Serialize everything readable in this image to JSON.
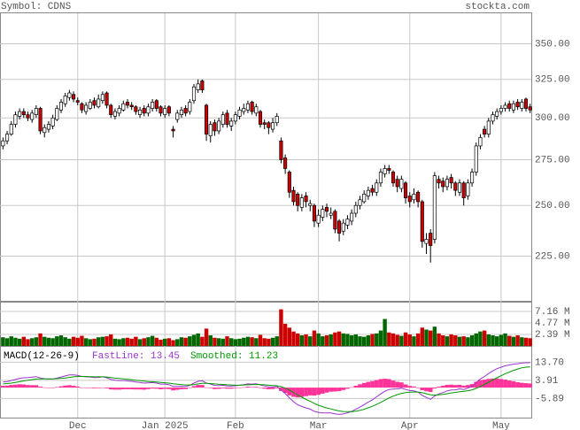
{
  "chart_data": {
    "type": "candlestick",
    "title": "Symbol: CDNS",
    "source": "stockta.com",
    "categories": [
      null,
      null,
      null,
      null,
      null,
      null,
      null,
      null,
      null,
      null,
      null,
      null,
      null,
      null,
      null,
      null,
      null,
      null,
      "Dec",
      null,
      null,
      null,
      null,
      null,
      null,
      null,
      null,
      null,
      null,
      null,
      null,
      null,
      null,
      null,
      null,
      null,
      null,
      null,
      null,
      "Jan 2025",
      null,
      null,
      null,
      null,
      null,
      null,
      null,
      null,
      null,
      null,
      null,
      null,
      null,
      null,
      null,
      null,
      "Feb",
      null,
      null,
      null,
      null,
      null,
      null,
      null,
      null,
      null,
      null,
      null,
      null,
      null,
      null,
      null,
      null,
      null,
      null,
      null,
      "Mar",
      null,
      null,
      null,
      null,
      null,
      null,
      null,
      null,
      null,
      null,
      null,
      null,
      null,
      null,
      null,
      null,
      null,
      null,
      null,
      null,
      null,
      "Apr",
      null,
      null,
      null,
      null,
      null,
      null,
      null,
      null,
      null,
      null,
      null,
      null,
      null,
      null,
      null,
      null,
      null,
      null,
      null,
      null,
      null,
      "May",
      null,
      null,
      null,
      null,
      null,
      null,
      null
    ],
    "open": [
      283,
      286,
      290,
      296,
      301,
      304,
      302,
      299,
      302,
      306,
      291,
      293,
      295,
      299,
      305,
      309,
      313,
      315,
      311,
      309,
      304,
      306,
      311,
      307,
      311,
      316,
      308,
      301,
      303,
      305,
      310,
      308,
      307,
      302,
      306,
      303,
      306,
      311,
      307,
      302,
      307,
      293,
      299,
      302,
      306,
      304,
      311,
      318,
      324,
      308,
      289,
      297,
      292,
      296,
      303,
      295,
      298,
      301,
      304,
      305,
      310,
      303,
      304,
      297,
      297,
      293,
      297,
      286,
      276,
      268,
      258,
      256,
      249,
      255,
      250,
      250,
      241,
      244,
      249,
      245,
      247,
      242,
      237,
      240,
      242,
      246,
      250,
      252,
      255,
      259,
      257,
      262,
      267,
      270,
      268,
      264,
      259,
      262,
      255,
      253,
      257,
      252,
      231,
      236,
      233,
      264,
      263,
      260,
      265,
      262,
      257,
      262,
      255,
      262,
      268,
      283,
      293,
      290,
      298,
      301,
      304,
      306,
      309,
      305,
      310,
      306,
      312,
      307
    ],
    "high": [
      288,
      292,
      298,
      304,
      306,
      306,
      304,
      305,
      308,
      307,
      296,
      298,
      302,
      308,
      312,
      316,
      318,
      317,
      313,
      310,
      310,
      312,
      313,
      315,
      317,
      317,
      309,
      306,
      308,
      311,
      312,
      310,
      308,
      307,
      308,
      309,
      312,
      312,
      308,
      308,
      308,
      295,
      305,
      307,
      308,
      312,
      322,
      325,
      325,
      309,
      298,
      299,
      300,
      304,
      305,
      300,
      304,
      307,
      309,
      311,
      311,
      309,
      305,
      299,
      298,
      300,
      303,
      288,
      278,
      269,
      260,
      257,
      256,
      257,
      253,
      251,
      248,
      250,
      251,
      249,
      248,
      243,
      243,
      245,
      248,
      252,
      255,
      258,
      260,
      261,
      264,
      270,
      272,
      272,
      269,
      266,
      266,
      263,
      257,
      259,
      258,
      253,
      236,
      238,
      268,
      266,
      265,
      266,
      267,
      263,
      264,
      263,
      264,
      270,
      285,
      290,
      295,
      300,
      304,
      306,
      308,
      310,
      311,
      311,
      312,
      312,
      313,
      309
    ],
    "low": [
      281,
      284,
      289,
      294,
      299,
      300,
      298,
      297,
      300,
      290,
      288,
      291,
      293,
      298,
      303,
      307,
      311,
      310,
      308,
      303,
      302,
      305,
      306,
      306,
      309,
      306,
      300,
      299,
      301,
      304,
      306,
      305,
      302,
      300,
      301,
      301,
      304,
      304,
      301,
      300,
      301,
      288,
      297,
      300,
      301,
      302,
      309,
      316,
      316,
      286,
      285,
      289,
      290,
      294,
      294,
      292,
      296,
      299,
      302,
      303,
      302,
      301,
      294,
      293,
      290,
      291,
      295,
      273,
      267,
      254,
      250,
      247,
      247,
      249,
      247,
      239,
      239,
      242,
      244,
      243,
      236,
      232,
      235,
      238,
      240,
      244,
      248,
      251,
      253,
      255,
      255,
      260,
      265,
      267,
      260,
      257,
      257,
      251,
      249,
      251,
      249,
      229,
      226,
      222,
      231,
      259,
      257,
      258,
      259,
      255,
      255,
      250,
      253,
      260,
      266,
      281,
      288,
      288,
      296,
      299,
      302,
      304,
      304,
      303,
      305,
      304,
      304,
      303
    ],
    "close": [
      286,
      290,
      296,
      302,
      304,
      302,
      300,
      303,
      306,
      292,
      294,
      296,
      300,
      306,
      310,
      314,
      316,
      312,
      310,
      305,
      308,
      310,
      308,
      312,
      315,
      308,
      302,
      304,
      306,
      309,
      308,
      307,
      304,
      305,
      303,
      307,
      310,
      306,
      303,
      306,
      303,
      292,
      303,
      305,
      303,
      310,
      320,
      322,
      318,
      290,
      296,
      292,
      298,
      302,
      296,
      298,
      302,
      305,
      306,
      309,
      304,
      307,
      296,
      296,
      294,
      297,
      301,
      275,
      270,
      257,
      252,
      250,
      254,
      252,
      251,
      242,
      245,
      248,
      247,
      246,
      238,
      236,
      241,
      243,
      246,
      250,
      253,
      256,
      258,
      257,
      262,
      268,
      270,
      269,
      262,
      260,
      264,
      254,
      252,
      256,
      252,
      232,
      233,
      230,
      266,
      262,
      260,
      264,
      262,
      258,
      262,
      254,
      262,
      268,
      283,
      288,
      290,
      298,
      302,
      304,
      306,
      308,
      306,
      309,
      307,
      310,
      306,
      305
    ],
    "ylim": [
      205,
      373
    ],
    "log_scale": true,
    "grid": true,
    "yticks": [
      {
        "value": 225,
        "label": "225.00"
      },
      {
        "value": 250,
        "label": "250.00"
      },
      {
        "value": 275,
        "label": "275.00"
      },
      {
        "value": 300,
        "label": "300.00"
      },
      {
        "value": 325,
        "label": "325.00"
      },
      {
        "value": 350,
        "label": "350.00"
      }
    ],
    "up_color": "#ffffff",
    "down_color": "#cc0000",
    "volume": {
      "values": [
        1.8,
        1.6,
        2.0,
        1.7,
        1.5,
        1.9,
        1.4,
        1.6,
        1.8,
        2.6,
        1.9,
        1.7,
        1.6,
        2.0,
        2.2,
        1.8,
        1.5,
        1.9,
        1.7,
        2.1,
        1.6,
        1.4,
        1.5,
        1.8,
        1.9,
        2.0,
        2.4,
        1.5,
        1.4,
        1.6,
        1.7,
        1.5,
        1.9,
        1.4,
        1.6,
        1.8,
        2.1,
        1.7,
        1.3,
        1.5,
        1.6,
        1.2,
        1.4,
        1.8,
        1.7,
        2.0,
        2.3,
        2.6,
        1.9,
        3.6,
        2.2,
        1.7,
        1.6,
        1.5,
        2.0,
        1.6,
        1.4,
        1.5,
        1.7,
        1.9,
        1.8,
        1.6,
        2.3,
        1.6,
        1.5,
        1.7,
        2.0,
        7.6,
        4.6,
        3.8,
        3.0,
        2.6,
        2.2,
        2.4,
        2.0,
        3.2,
        2.6,
        2.0,
        2.2,
        2.4,
        2.8,
        3.0,
        2.6,
        2.5,
        2.2,
        2.4,
        2.0,
        1.9,
        2.2,
        2.5,
        2.6,
        3.2,
        5.6,
        2.8,
        2.6,
        2.3,
        2.1,
        2.8,
        2.4,
        2.0,
        2.6,
        3.8,
        3.4,
        3.2,
        4.0,
        2.6,
        2.2,
        2.0,
        2.4,
        2.2,
        1.9,
        2.0,
        1.8,
        2.2,
        2.6,
        3.0,
        3.2,
        2.4,
        2.2,
        2.0,
        2.3,
        2.6,
        2.1,
        1.9,
        2.2,
        1.8,
        1.7,
        1.6
      ],
      "ylim": [
        0,
        9
      ],
      "yticks": [
        {
          "value": 2.39,
          "label": "2.39 M"
        },
        {
          "value": 4.77,
          "label": "4.77 M"
        },
        {
          "value": 7.16,
          "label": "7.16 M"
        }
      ],
      "up_color": "#006600",
      "down_color": "#cc0000"
    },
    "macd": {
      "title": "MACD(12-26-9)",
      "ylim": [
        -16.2,
        22
      ],
      "yticks": [
        -5.89,
        3.91,
        {
          "value": 13.7,
          "label": "13.70"
        }
      ],
      "series": [
        {
          "name": "FastLine: 13.45",
          "color": "#9933cc",
          "values": [
            3.0,
            3.3,
            3.8,
            4.4,
            5.0,
            5.3,
            5.4,
            5.6,
            5.9,
            5.2,
            4.8,
            4.6,
            4.7,
            5.1,
            5.7,
            6.3,
            6.8,
            6.8,
            6.6,
            6.0,
            5.8,
            5.7,
            5.4,
            5.5,
            5.8,
            5.3,
            4.4,
            4.0,
            3.8,
            3.8,
            3.6,
            3.4,
            3.0,
            2.8,
            2.4,
            2.5,
            2.7,
            2.4,
            1.9,
            1.9,
            1.6,
            0.6,
            0.6,
            0.7,
            0.6,
            1.2,
            2.4,
            3.4,
            3.7,
            2.4,
            1.9,
            1.2,
            1.1,
            1.3,
            0.9,
            0.8,
            1.0,
            1.3,
            1.6,
            2.0,
            1.9,
            2.1,
            1.4,
            0.9,
            0.4,
            0.3,
            0.6,
            -1.3,
            -3.2,
            -5.5,
            -7.6,
            -9.3,
            -10.2,
            -11.0,
            -11.6,
            -12.8,
            -13.4,
            -13.6,
            -13.7,
            -13.7,
            -14.2,
            -14.5,
            -14.2,
            -13.6,
            -12.8,
            -11.7,
            -10.5,
            -9.2,
            -7.8,
            -6.6,
            -5.0,
            -3.4,
            -2.0,
            -1.0,
            -0.8,
            -0.7,
            -0.3,
            -1.0,
            -1.6,
            -1.8,
            -2.4,
            -4.2,
            -5.3,
            -6.3,
            -4.5,
            -3.4,
            -2.7,
            -1.8,
            -1.3,
            -1.2,
            -0.7,
            -1.0,
            -0.3,
            0.7,
            2.7,
            4.6,
            6.0,
            7.6,
            9.0,
            10.2,
            11.0,
            11.8,
            12.2,
            12.7,
            12.9,
            13.3,
            13.4,
            13.45
          ]
        },
        {
          "name": "Smoothed: 11.23",
          "color": "#009900",
          "values": [
            2.0,
            2.2,
            2.4,
            2.8,
            3.2,
            3.6,
            4.0,
            4.3,
            4.6,
            4.7,
            4.7,
            4.7,
            4.7,
            4.8,
            5.0,
            5.2,
            5.5,
            5.8,
            6.0,
            6.0,
            6.0,
            5.9,
            5.8,
            5.8,
            5.8,
            5.7,
            5.4,
            5.1,
            4.9,
            4.7,
            4.5,
            4.3,
            4.0,
            3.8,
            3.5,
            3.3,
            3.2,
            3.0,
            2.8,
            2.6,
            2.4,
            2.1,
            1.8,
            1.6,
            1.4,
            1.4,
            1.6,
            2.0,
            2.3,
            2.3,
            2.2,
            2.0,
            1.8,
            1.7,
            1.5,
            1.4,
            1.3,
            1.3,
            1.4,
            1.5,
            1.6,
            1.7,
            1.6,
            1.5,
            1.3,
            1.1,
            1.0,
            0.5,
            -0.3,
            -1.3,
            -2.6,
            -4.0,
            -5.2,
            -6.4,
            -7.4,
            -8.5,
            -9.5,
            -10.3,
            -11.0,
            -11.5,
            -12.1,
            -12.6,
            -12.9,
            -13.0,
            -13.0,
            -12.7,
            -12.3,
            -11.7,
            -10.9,
            -10.1,
            -9.1,
            -8.0,
            -6.8,
            -5.6,
            -4.6,
            -3.8,
            -3.1,
            -2.7,
            -2.5,
            -2.4,
            -2.4,
            -2.8,
            -3.3,
            -3.9,
            -4.0,
            -3.9,
            -3.7,
            -3.3,
            -2.9,
            -2.6,
            -2.2,
            -2.0,
            -1.7,
            -1.2,
            -0.4,
            0.6,
            1.7,
            2.9,
            4.1,
            5.3,
            6.4,
            7.5,
            8.4,
            9.3,
            10.0,
            10.7,
            11.0,
            11.23
          ]
        }
      ],
      "histogram": {
        "color": "#ff3399",
        "values": [
          1.0,
          1.1,
          1.4,
          1.6,
          1.8,
          1.7,
          1.4,
          1.3,
          1.3,
          0.5,
          0.1,
          -0.1,
          0.0,
          0.3,
          0.7,
          1.1,
          1.3,
          1.0,
          0.6,
          0.0,
          -0.2,
          -0.2,
          -0.4,
          -0.3,
          0.0,
          -0.4,
          -1.0,
          -1.1,
          -1.1,
          -0.9,
          -0.9,
          -0.9,
          -1.0,
          -1.0,
          -1.1,
          -0.8,
          -0.5,
          -0.6,
          -0.9,
          -0.7,
          -0.8,
          -1.5,
          -1.2,
          -0.9,
          -0.8,
          -0.2,
          0.8,
          1.4,
          1.4,
          0.1,
          -0.3,
          -0.8,
          -0.7,
          -0.4,
          -0.6,
          -0.6,
          -0.3,
          0.0,
          0.2,
          0.5,
          0.3,
          0.4,
          -0.2,
          -0.6,
          -0.9,
          -0.8,
          -0.4,
          -1.8,
          -2.9,
          -4.2,
          -5.0,
          -5.3,
          -5.0,
          -4.6,
          -4.2,
          -4.3,
          -3.9,
          -3.3,
          -2.7,
          -2.2,
          -2.1,
          -1.9,
          -1.3,
          -0.6,
          0.2,
          1.0,
          1.8,
          2.5,
          3.1,
          3.5,
          4.1,
          4.6,
          4.8,
          4.6,
          3.8,
          3.1,
          2.8,
          1.7,
          0.9,
          0.6,
          0.0,
          -1.4,
          -2.0,
          -2.4,
          -0.5,
          0.5,
          1.0,
          1.5,
          1.6,
          1.4,
          1.5,
          1.0,
          1.4,
          1.9,
          3.1,
          4.0,
          4.3,
          4.7,
          4.9,
          4.9,
          4.6,
          4.3,
          3.8,
          3.4,
          2.9,
          2.6,
          2.4,
          2.22
        ]
      }
    }
  }
}
